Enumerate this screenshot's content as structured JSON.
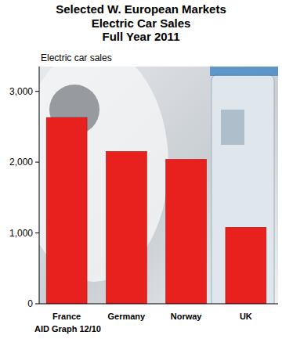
{
  "chart_data": {
    "type": "bar",
    "title": "Selected W. European Markets",
    "subtitle": [
      "Electric Car Sales",
      "Full Year 2011"
    ],
    "y_label": "Electric car sales",
    "annotations": [
      "AID Graph 12/10"
    ],
    "categories": [
      "France",
      "Germany",
      "Norway",
      "UK"
    ],
    "values": [
      2630,
      2150,
      2040,
      1080
    ],
    "color": "#e8201e",
    "ylim": [
      0,
      3350
    ],
    "yticks": [
      {
        "value": 0,
        "label": "0"
      },
      {
        "value": 1000,
        "label": "1,000"
      },
      {
        "value": 2000,
        "label": "2,000"
      },
      {
        "value": 3000,
        "label": "3,000"
      }
    ],
    "grid": false
  }
}
